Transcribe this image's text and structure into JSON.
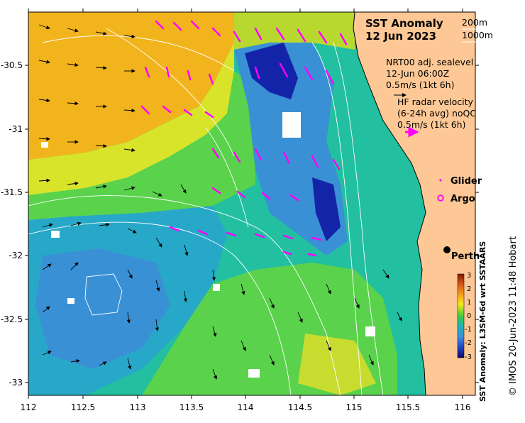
{
  "map": {
    "title_line1": "SST Anomaly",
    "title_line2": "12 Jun 2023",
    "depth_contours": [
      "200m",
      "1000m"
    ],
    "sealevel": {
      "line1": "NRT00 adj. sealevel",
      "line2": "12-Jun 06:00Z",
      "line3": "0.5m/s (1kt 6h)"
    },
    "hf_radar": {
      "line1": "HF radar velocity",
      "line2": "(6-24h avg) noQC",
      "line3": "0.5m/s (1kt 6h)"
    },
    "legend": {
      "glider": "Glider",
      "argo": "Argo"
    },
    "city": "Perth",
    "colorbar": {
      "title": "SST Anomaly: L3SM-6d wrt SSTAARS",
      "ticks": [
        "3",
        "2",
        "1",
        "0",
        "-1",
        "-2",
        "-3"
      ]
    },
    "credit": "© IMOS 20-Jun-2023 11:48 Hobart",
    "x_ticks": [
      "112",
      "112.5",
      "113",
      "113.5",
      "114",
      "114.5",
      "115",
      "115.5",
      "116"
    ],
    "y_ticks": [
      "-30.5",
      "-31",
      "-31.5",
      "-32",
      "-32.5",
      "-33"
    ],
    "colors": {
      "land": "#fdc895",
      "hf_arrow": "#ff00ff",
      "current_arrow": "#000000",
      "contour": "#ffffff"
    }
  }
}
